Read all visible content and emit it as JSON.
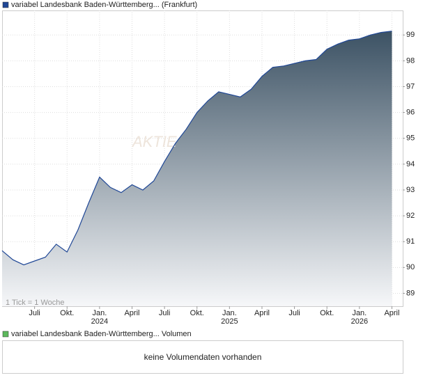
{
  "chart_data": {
    "type": "area",
    "title": "variabel Landesbank Baden-Württemberg... (Frankfurt)",
    "watermark": "AKTIE",
    "note": "1 Tick = 1 Woche",
    "x": [
      "2023-04",
      "2023-05",
      "2023-06",
      "2023-07",
      "2023-08",
      "2023-09",
      "2023-10",
      "2023-11",
      "2023-12",
      "2024-01",
      "2024-02",
      "2024-03",
      "2024-04",
      "2024-05",
      "2024-06",
      "2024-07",
      "2024-08",
      "2024-09",
      "2024-10",
      "2024-11",
      "2024-12",
      "2025-01",
      "2025-02",
      "2025-03",
      "2025-04",
      "2025-05",
      "2025-06",
      "2025-07",
      "2025-08",
      "2025-09",
      "2025-10",
      "2025-11",
      "2025-12",
      "2026-01",
      "2026-02",
      "2026-03",
      "2026-04"
    ],
    "series": [
      {
        "name": "variabel Landesbank Baden-Württemberg... (Frankfurt)",
        "color": "#1f4796",
        "values": [
          90.65,
          90.3,
          90.1,
          90.25,
          90.4,
          90.9,
          90.6,
          91.45,
          92.5,
          93.5,
          93.1,
          92.9,
          93.2,
          93.0,
          93.35,
          94.1,
          94.8,
          95.35,
          96.0,
          96.45,
          96.8,
          96.7,
          96.6,
          96.9,
          97.4,
          97.75,
          97.8,
          97.9,
          98.0,
          98.05,
          98.45,
          98.65,
          98.8,
          98.85,
          99.0,
          99.1,
          99.15
        ]
      }
    ],
    "xlim": [
      "2023-04",
      "2026-05"
    ],
    "xticks": [
      {
        "value": "2023-07",
        "label": "Juli"
      },
      {
        "value": "2023-10",
        "label": "Okt."
      },
      {
        "value": "2024-01",
        "label": "Jan.",
        "year": "2024"
      },
      {
        "value": "2024-04",
        "label": "April"
      },
      {
        "value": "2024-07",
        "label": "Juli"
      },
      {
        "value": "2024-10",
        "label": "Okt."
      },
      {
        "value": "2025-01",
        "label": "Jan.",
        "year": "2025"
      },
      {
        "value": "2025-04",
        "label": "April"
      },
      {
        "value": "2025-07",
        "label": "Juli"
      },
      {
        "value": "2025-10",
        "label": "Okt."
      },
      {
        "value": "2026-01",
        "label": "Jan.",
        "year": "2026"
      },
      {
        "value": "2026-04",
        "label": "April"
      }
    ],
    "ylim": [
      88.5,
      99.95
    ],
    "yticks": [
      89,
      90,
      91,
      92,
      93,
      94,
      95,
      96,
      97,
      98,
      99
    ],
    "grid": true,
    "volume": {
      "title": "variabel Landesbank Baden-Württemberg... Volumen",
      "color": "#5cb85c",
      "message": "keine Volumendaten vorhanden"
    }
  }
}
